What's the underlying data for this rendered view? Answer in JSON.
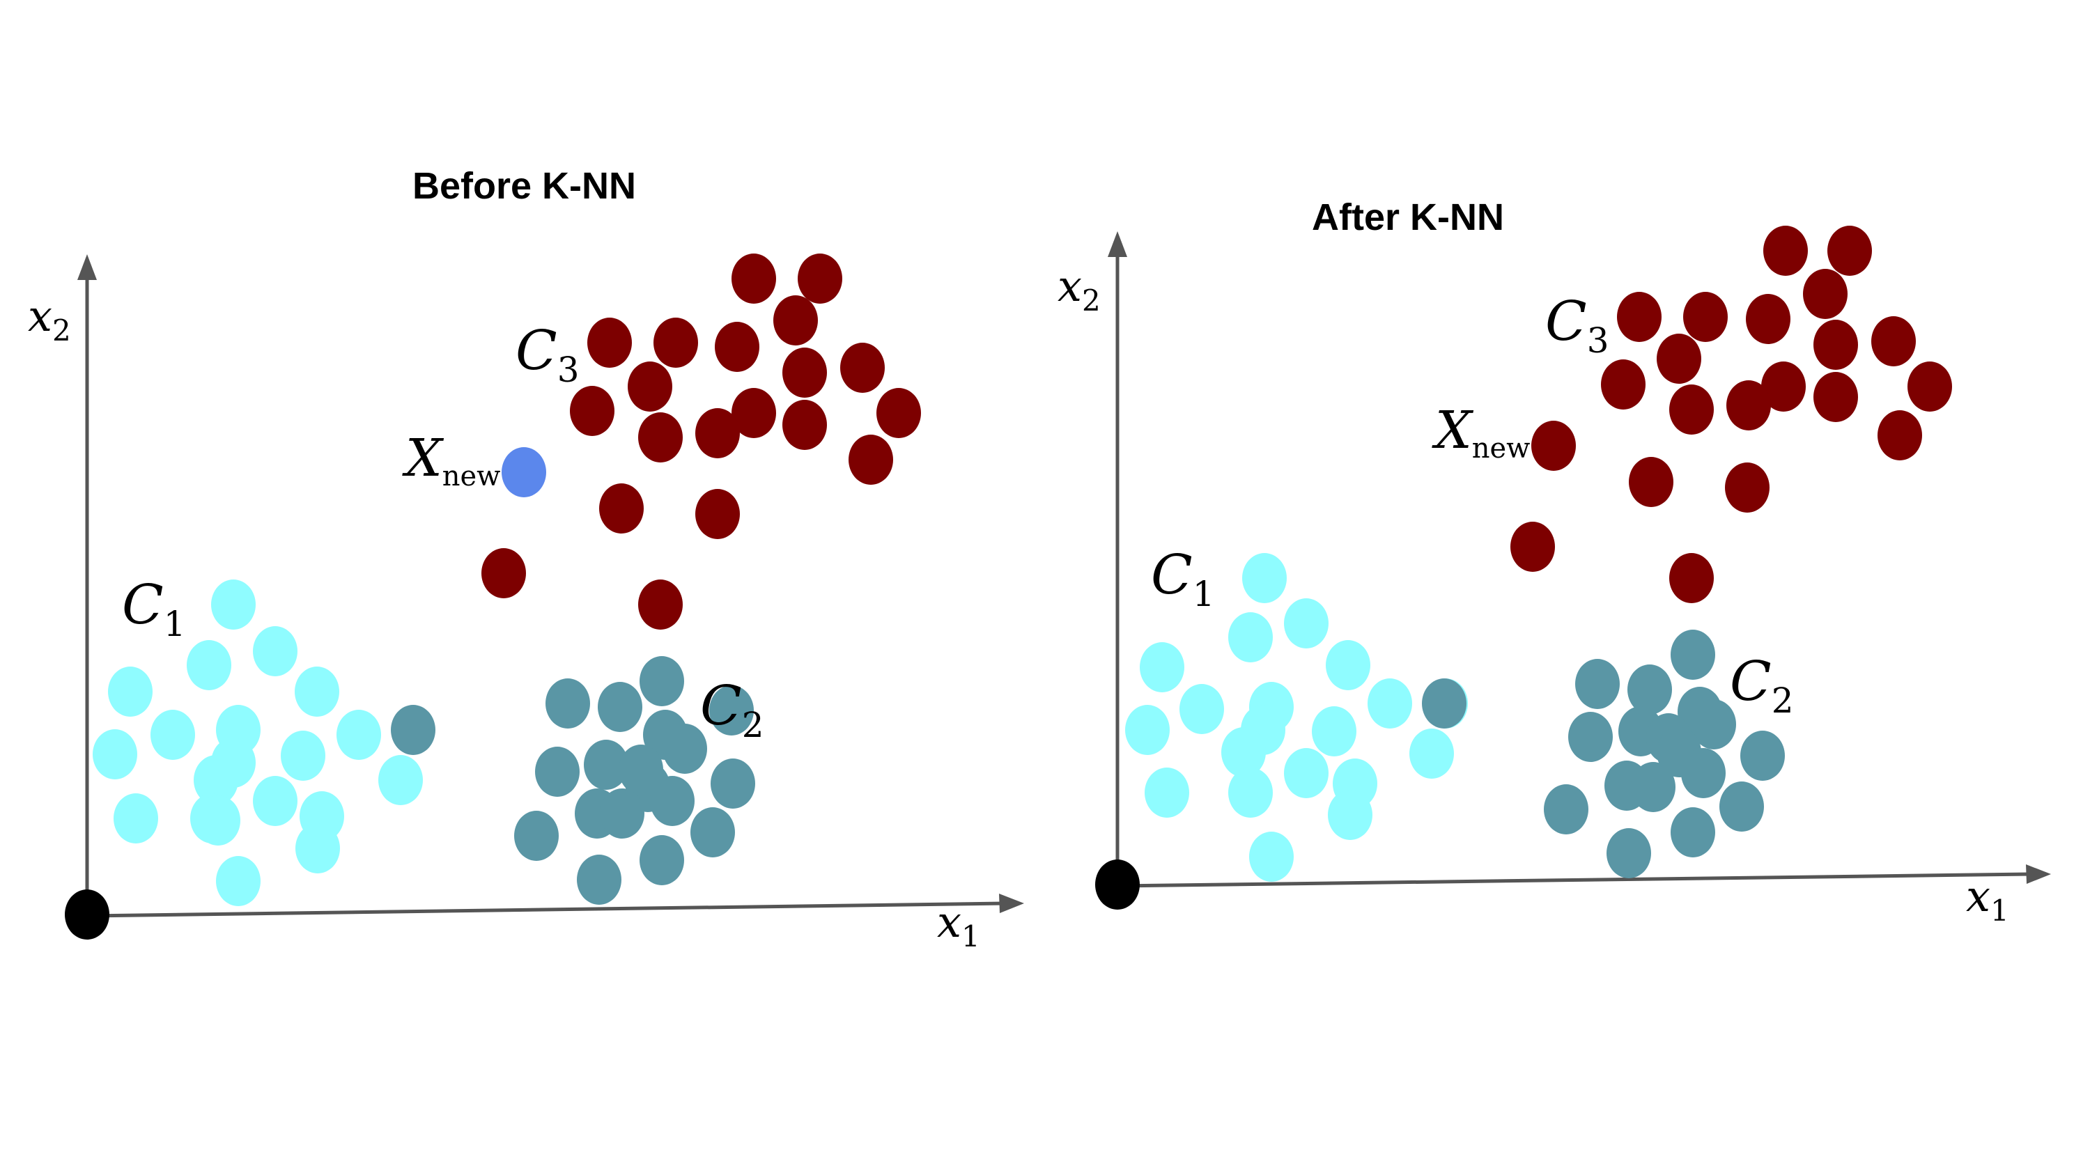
{
  "colors": {
    "C1": "#8ffcff",
    "C2": "#5a96a5",
    "C3": "#7d0000",
    "Xnew_before": "#5b87ec",
    "origin": "#000000",
    "axis": "#555555"
  },
  "panels": [
    {
      "id": "before",
      "title": "Before K-NN",
      "x_axis_label": {
        "var": "x",
        "sub": "1"
      },
      "y_axis_label": {
        "var": "x",
        "sub": "2"
      },
      "cluster_labels": [
        {
          "cluster": "C1",
          "var": "C",
          "sub": "1"
        },
        {
          "cluster": "C2",
          "var": "C",
          "sub": "2"
        },
        {
          "cluster": "C3",
          "var": "C",
          "sub": "3"
        }
      ],
      "new_point_label": {
        "var": "X",
        "sub": "new"
      },
      "new_point_class": "unassigned"
    },
    {
      "id": "after",
      "title": "After K-NN",
      "x_axis_label": {
        "var": "x",
        "sub": "1"
      },
      "y_axis_label": {
        "var": "x",
        "sub": "2"
      },
      "cluster_labels": [
        {
          "cluster": "C1",
          "var": "C",
          "sub": "1"
        },
        {
          "cluster": "C2",
          "var": "C",
          "sub": "2"
        },
        {
          "cluster": "C3",
          "var": "C",
          "sub": "3"
        }
      ],
      "new_point_label": {
        "var": "X",
        "sub": "new"
      },
      "new_point_class": "C3"
    }
  ]
}
